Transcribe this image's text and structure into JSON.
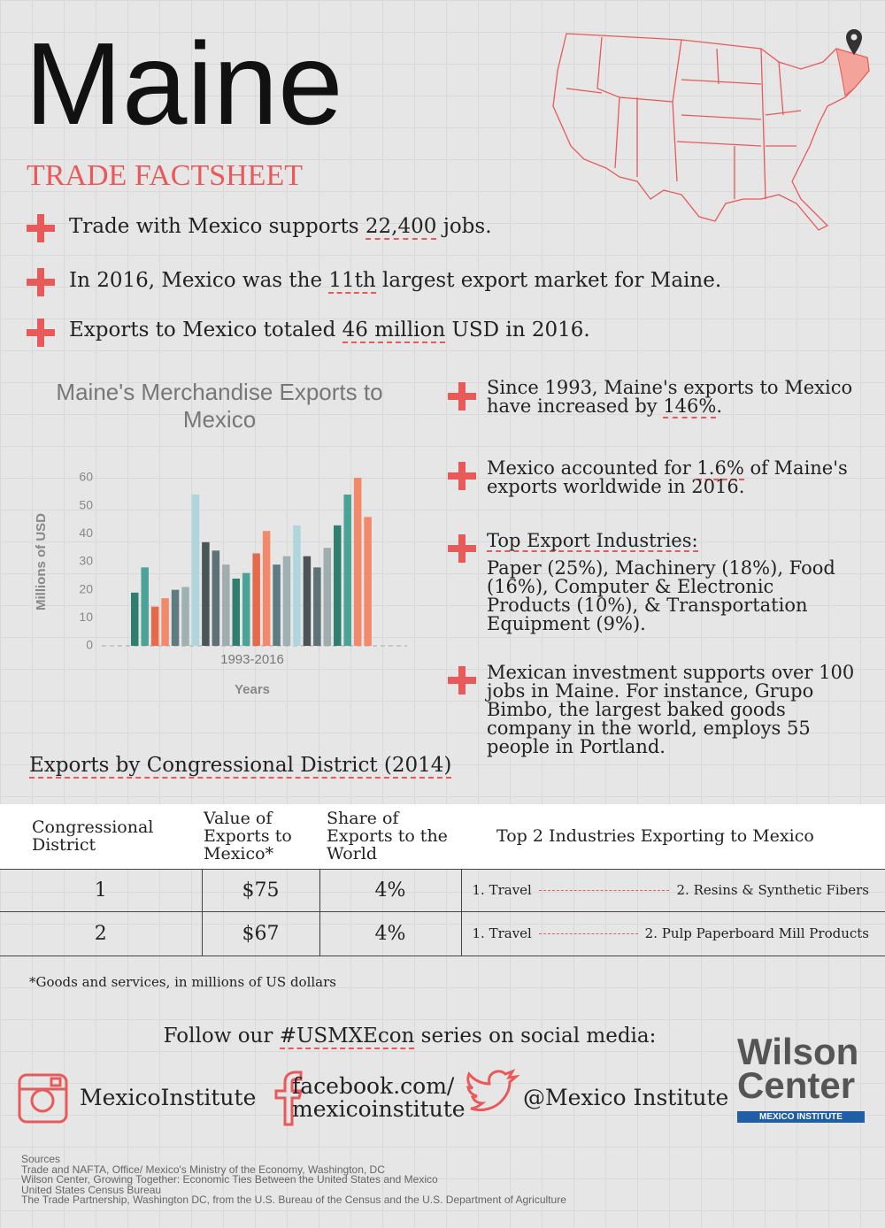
{
  "header": {
    "title": "Maine",
    "subtitle": "TRADE FACTSHEET"
  },
  "facts": [
    {
      "before": "Trade with Mexico supports ",
      "highlight": "22,400",
      "after": " jobs."
    },
    {
      "before": "In 2016, Mexico was the ",
      "highlight": "11th",
      "after": " largest export market for Maine."
    },
    {
      "before": "Exports to Mexico totaled ",
      "highlight": "46 million",
      "after": " USD in 2016."
    }
  ],
  "chart_data": {
    "type": "bar",
    "title": "Maine's Merchandise Exports to Mexico",
    "x_range_label": "1993-2016",
    "xlabel": "Years",
    "ylabel": "Millions of USD",
    "values": [
      19,
      28,
      14,
      17,
      20,
      21,
      54,
      37,
      34,
      29,
      24,
      26,
      33,
      41,
      29,
      32,
      43,
      32,
      28,
      35,
      43,
      54,
      60,
      46
    ],
    "colors": [
      "#2f7f70",
      "#4aa396",
      "#e66a4a",
      "#f3896b",
      "#5d7b80",
      "#9eb2b4",
      "#afd5dd",
      "#4b5557",
      "#5d7176",
      "#a0adaf",
      "#2f7f70",
      "#4aa396",
      "#e66a4a",
      "#f3896b",
      "#5d7b80",
      "#9eb2b4",
      "#afd5dd",
      "#4b5557",
      "#5d7176",
      "#a0adaf",
      "#2f7f70",
      "#4aa396",
      "#f3896b",
      "#f3896b"
    ],
    "ylim": [
      0,
      60
    ],
    "yticks": [
      0,
      10,
      20,
      30,
      40,
      50,
      60
    ]
  },
  "side_facts": [
    {
      "before": "Since 1993, Maine's exports to Mexico have increased by ",
      "highlight": "146%",
      "after": "."
    },
    {
      "before": "Mexico accounted for ",
      "highlight": "1.6%",
      "after": " of Maine's exports worldwide in 2016."
    },
    {
      "highlight": "Top Export Industries:",
      "after": "Paper (25%), Machinery (18%), Food (16%), Computer & Electronic Products (10%), & Transportation Equipment (9%)."
    },
    {
      "after": "Mexican investment supports over 100 jobs in Maine. For instance, Grupo Bimbo, the largest baked goods company in the world, employs 55 people in Portland."
    }
  ],
  "table": {
    "title": "Exports by Congressional District (2014)",
    "headers": [
      "Congressional District",
      "Value of Exports to Mexico*",
      "Share of Exports to the World",
      "Top 2 Industries Exporting to Mexico"
    ],
    "rows": [
      [
        "1",
        "$75",
        "4%",
        "1. Travel",
        "2. Resins & Synthetic Fibers"
      ],
      [
        "2",
        "$67",
        "4%",
        "1. Travel",
        "2. Pulp Paperboard Mill Products"
      ]
    ],
    "note": "*Goods and services, in millions of US dollars"
  },
  "social": {
    "before": "Follow our ",
    "hashtag": "#USMXEcon",
    "after": " series on social media:",
    "instagram": "MexicoInstitute",
    "facebook": [
      "facebook.com/",
      "mexicoinstitute"
    ],
    "twitter": "@Mexico Institute"
  },
  "logo": {
    "line1": "Wilson",
    "line2": "Center",
    "tagline": "MEXICO INSTITUTE"
  },
  "sources": [
    "Sources",
    "Trade and NAFTA, Office/ Mexico's Ministry of the Economy, Washington, DC",
    "Wilson Center, Growing Together: Economic Ties Between the United States and Mexico",
    "United States Census Bureau",
    "The Trade Partnership, Washington DC, from the U.S. Bureau of the Census and the U.S. Department of Agriculture"
  ]
}
